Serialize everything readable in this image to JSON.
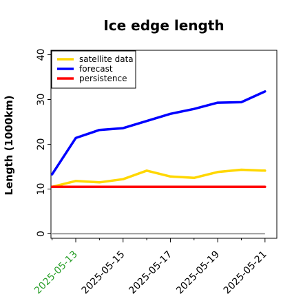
{
  "chart_data": {
    "type": "line",
    "title": "Ice edge length",
    "xlabel": "",
    "ylabel": "Length (1000km)",
    "ylim": [
      -1,
      41
    ],
    "xlim": [
      "2025-05-11T22:50",
      "2025-05-21T12:00"
    ],
    "yticks": [
      0,
      10,
      20,
      30,
      40
    ],
    "xtick_labels": [
      "2025-05-13",
      "2025-05-15",
      "2025-05-17",
      "2025-05-19",
      "2025-05-21"
    ],
    "xtick_dates": [
      "2025-05-13",
      "2025-05-15",
      "2025-05-17",
      "2025-05-19",
      "2025-05-21"
    ],
    "xtick_label_colors": [
      "#2ca02c",
      "#000000",
      "#000000",
      "#000000",
      "#000000"
    ],
    "grid": false,
    "legend_position": "top-left",
    "x": [
      "2025-05-12",
      "2025-05-13",
      "2025-05-14",
      "2025-05-15",
      "2025-05-16",
      "2025-05-17",
      "2025-05-18",
      "2025-05-19",
      "2025-05-20",
      "2025-05-21"
    ],
    "series": [
      {
        "name": "satellite data",
        "color": "#ffd700",
        "values": [
          10.5,
          11.8,
          11.5,
          12.2,
          14.1,
          12.8,
          12.5,
          13.8,
          14.3,
          14.1
        ]
      },
      {
        "name": "forecast",
        "color": "#0000ff",
        "values": [
          13.3,
          21.4,
          23.2,
          23.6,
          25.2,
          26.8,
          27.9,
          29.3,
          29.4,
          31.8
        ]
      },
      {
        "name": "persistence",
        "color": "#ff0000",
        "values": [
          10.5,
          10.5,
          10.5,
          10.5,
          10.5,
          10.5,
          10.5,
          10.5,
          10.5,
          10.5
        ]
      }
    ],
    "reference_line": {
      "y": 0,
      "color": "#808080"
    }
  }
}
